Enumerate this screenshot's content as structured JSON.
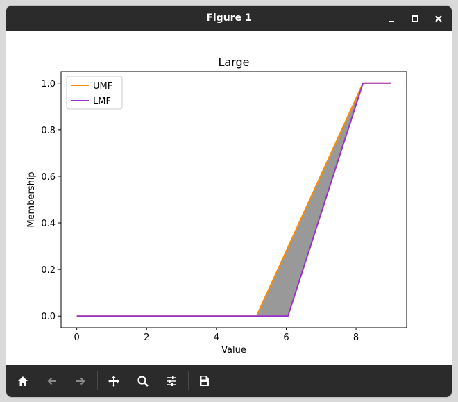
{
  "window": {
    "title": "Figure 1"
  },
  "toolbar": {
    "buttons": [
      {
        "name": "home-icon"
      },
      {
        "name": "back-arrow-icon"
      },
      {
        "name": "forward-arrow-icon"
      },
      {
        "name": "pan-move-icon"
      },
      {
        "name": "zoom-magnifier-icon"
      },
      {
        "name": "configure-subplots-icon"
      },
      {
        "name": "save-floppy-icon"
      }
    ]
  },
  "chart_data": {
    "type": "line",
    "title": "Large",
    "xlabel": "Value",
    "ylabel": "Membership",
    "xlim": [
      -0.45,
      9.45
    ],
    "ylim": [
      -0.05,
      1.05
    ],
    "xticks": [
      "0",
      "2",
      "4",
      "6",
      "8"
    ],
    "xtick_values": [
      0,
      2,
      4,
      6,
      8
    ],
    "yticks": [
      "0.0",
      "0.2",
      "0.4",
      "0.6",
      "0.8",
      "1.0"
    ],
    "ytick_values": [
      0,
      0.2,
      0.4,
      0.6,
      0.8,
      1.0
    ],
    "legend_position": "top-left",
    "fill_between": {
      "color": "#999999"
    },
    "series": [
      {
        "name": "UMF",
        "color": "#ff8c00",
        "x": [
          0,
          5.15,
          8.2,
          9.0
        ],
        "y": [
          0,
          0,
          1,
          1
        ]
      },
      {
        "name": "LMF",
        "color": "#9932cc",
        "x": [
          0,
          6.05,
          8.2,
          9.0
        ],
        "y": [
          0,
          0,
          1,
          1
        ]
      }
    ]
  }
}
